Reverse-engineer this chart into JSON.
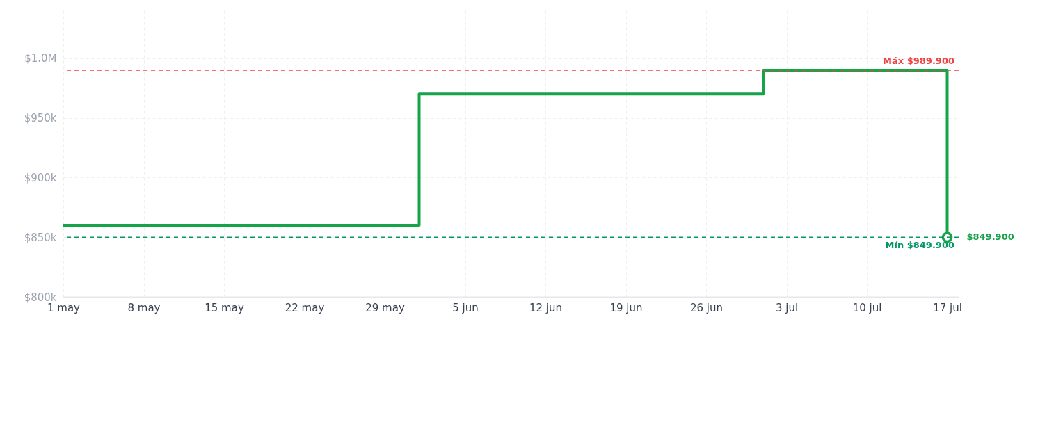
{
  "chart_data": {
    "type": "step",
    "x": [
      "--05-01",
      "--06-01",
      "--07-01",
      "--07-17",
      "--07-17"
    ],
    "series": [
      {
        "color": "#16a34a",
        "values": [
          860000,
          970000,
          989900,
          989900,
          849900
        ]
      }
    ],
    "annotations": [
      {
        "text": "$849.900",
        "x": "--07-17",
        "y": 849900
      }
    ],
    "xlim": [
      "--05-01",
      "--07-18"
    ],
    "xticks": [
      {
        "value": "--05-01",
        "label": "1 may"
      },
      {
        "value": "--05-08",
        "label": "8 may"
      },
      {
        "value": "--05-15",
        "label": "15 may"
      },
      {
        "value": "--05-22",
        "label": "22 may"
      },
      {
        "value": "--05-29",
        "label": "29 may"
      },
      {
        "value": "--06-05",
        "label": "5 jun"
      },
      {
        "value": "--06-12",
        "label": "12 jun"
      },
      {
        "value": "--06-19",
        "label": "19 jun"
      },
      {
        "value": "--06-26",
        "label": "26 jun"
      },
      {
        "value": "--07-03",
        "label": "3 jul"
      },
      {
        "value": "--07-10",
        "label": "10 jul"
      },
      {
        "value": "--07-17",
        "label": "17 jul"
      }
    ],
    "ylim": [
      800000,
      1040000
    ],
    "yticks": [
      {
        "value": 800000,
        "label": "$800k"
      },
      {
        "value": 850000,
        "label": "$850k"
      },
      {
        "value": 900000,
        "label": "$900k"
      },
      {
        "value": 950000,
        "label": "$950k"
      },
      {
        "value": 1000000,
        "label": "$1.0M"
      }
    ],
    "ref_lines": [
      {
        "axis": "y",
        "value": 989900,
        "label": "Máx $989.900",
        "color": "#ef4444",
        "line_style": "dashed"
      },
      {
        "axis": "y",
        "value": 849900,
        "label": "Mín $849.900",
        "color": "#059669",
        "line_style": "dashed"
      }
    ],
    "grid": true,
    "marker": "none",
    "line_style": "solid"
  }
}
